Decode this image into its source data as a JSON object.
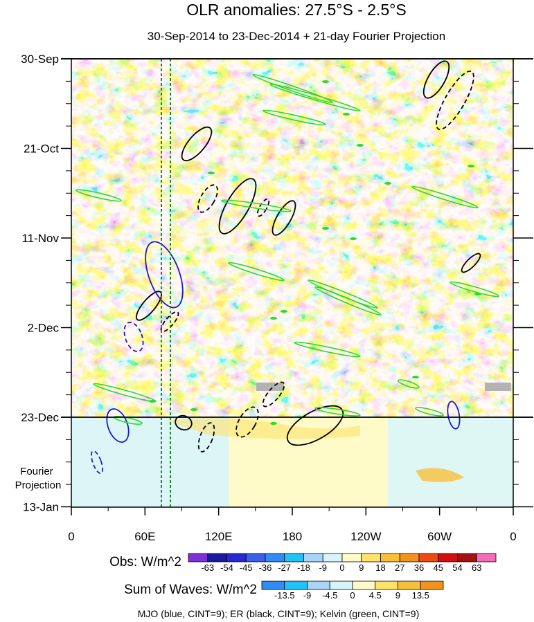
{
  "chart_data": {
    "type": "heatmap",
    "title": "OLR anomalies: 27.5°S - 2.5°S",
    "subtitle": "30-Sep-2014 to 23-Dec-2014 + 21-day Fourier Projection",
    "x_ticks": [
      "0",
      "60E",
      "120E",
      "180",
      "120W",
      "60W",
      "0"
    ],
    "x_range": [
      0,
      360
    ],
    "y_ticks": [
      "30-Sep",
      "21-Oct",
      "11-Nov",
      "2-Dec",
      "23-Dec",
      "13-Jan"
    ],
    "y_range": [
      "30-Sep-2014",
      "13-Jan-2015"
    ],
    "projection_label": "Fourier\nProjection",
    "projection_start": "23-Dec",
    "obs_colorbar": {
      "label": "Obs: W/m^2",
      "levels": [
        "-63",
        "-54",
        "-45",
        "-36",
        "-27",
        "-18",
        "-9",
        "0",
        "9",
        "18",
        "27",
        "36",
        "45",
        "54",
        "63"
      ],
      "colors": [
        "#7e2fd6",
        "#1a1aa0",
        "#2828d0",
        "#3c5ee8",
        "#2f8cf5",
        "#1fc3f5",
        "#a9d3f7",
        "#d8f4fb",
        "#fffbc8",
        "#fde36a",
        "#f8c03a",
        "#f4921f",
        "#ee4a12",
        "#d40f0f",
        "#a41010",
        "#f46cbc"
      ]
    },
    "waves_colorbar": {
      "label": "Sum of Waves: W/m^2",
      "levels": [
        "-13.5",
        "-9",
        "-4.5",
        "0",
        "4.5",
        "9",
        "13.5"
      ],
      "colors": [
        "#2f8cf5",
        "#1fc3f5",
        "#a9d3f7",
        "#d8f4fb",
        "#fffbc8",
        "#fde36a",
        "#f8c03a",
        "#f4921f"
      ]
    },
    "legend_text": "MJO (blue, CINT=9); ER (black, CINT=9); Kelvin (green, CINT=9)",
    "series_colors": {
      "MJO": "#1a1ad0",
      "ER": "#000000",
      "Kelvin": "#28dc28"
    },
    "reference_lines_deg": [
      73,
      80
    ]
  }
}
